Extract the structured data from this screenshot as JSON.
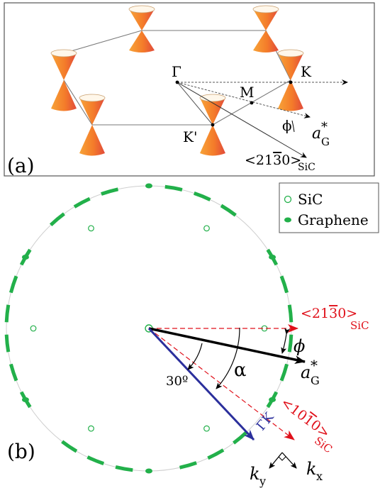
{
  "panel_a": {
    "label": "(a)",
    "points": {
      "gamma": "Γ",
      "k": "K",
      "m": "M",
      "kprime": "K'",
      "phi": "ϕ",
      "a_g": "a",
      "a_g_sup": "*",
      "a_g_sub": "G",
      "dir_sic": "<21",
      "dir_sic_bar": "3",
      "dir_sic_end": "0>",
      "dir_sic_sub": "SiC"
    }
  },
  "panel_b": {
    "label": "(b)",
    "legend": {
      "sic": "SiC",
      "graphene": "Graphene"
    },
    "labels": {
      "dir1_a": "<21",
      "dir1_bar": "3",
      "dir1_b": "0>",
      "dir1_sub": "SiC",
      "dir2_a": "<10",
      "dir2_bar": "1",
      "dir2_b": "0>",
      "dir2_sub": "SiC",
      "phi": "ϕ",
      "alpha": "α",
      "angle30": "30º",
      "a_g": "a",
      "a_g_sup": "*",
      "a_g_sub": "G",
      "gk": "ΓK",
      "ky": "k",
      "ky_sub": "y",
      "kx": "k",
      "kx_sub": "x"
    },
    "colors": {
      "sic_line": "#e0101a",
      "graphene": "#22b04a",
      "gk_line": "#2b2f9c",
      "circle": "#c8c8c8"
    }
  }
}
